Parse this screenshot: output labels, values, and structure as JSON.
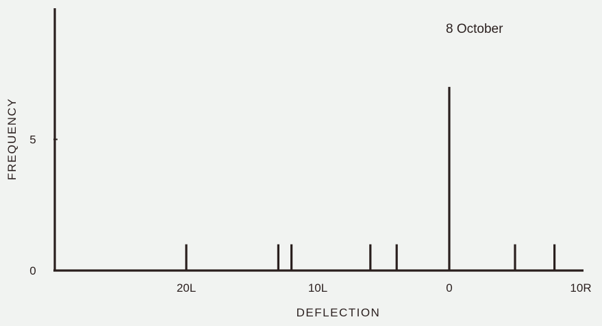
{
  "chart_data": {
    "type": "bar",
    "title": "8 October",
    "xlabel": "DEFLECTION",
    "ylabel": "FREQUENCY",
    "x_axis_direction": "left deflections (L) to the left of 0, right deflections (R) to the right",
    "xlim": [
      -30,
      10
    ],
    "ylim": [
      0,
      10
    ],
    "x_ticks": [
      {
        "value": -20,
        "label": "20L"
      },
      {
        "value": -10,
        "label": "10L"
      },
      {
        "value": 0,
        "label": "0"
      },
      {
        "value": 10,
        "label": "10R"
      }
    ],
    "y_ticks": [
      {
        "value": 0,
        "label": "0"
      },
      {
        "value": 5,
        "label": "5"
      }
    ],
    "points": [
      {
        "x": -30,
        "y": 10
      },
      {
        "x": -20,
        "y": 1
      },
      {
        "x": -13,
        "y": 1
      },
      {
        "x": -12,
        "y": 1
      },
      {
        "x": -6,
        "y": 1
      },
      {
        "x": -4,
        "y": 1
      },
      {
        "x": 0,
        "y": 7
      },
      {
        "x": 5,
        "y": 1
      },
      {
        "x": 8,
        "y": 1
      }
    ],
    "grid": false,
    "legend": "none",
    "colors": {
      "ink": "#2a1f1e",
      "background": "#f1f3f1"
    }
  }
}
